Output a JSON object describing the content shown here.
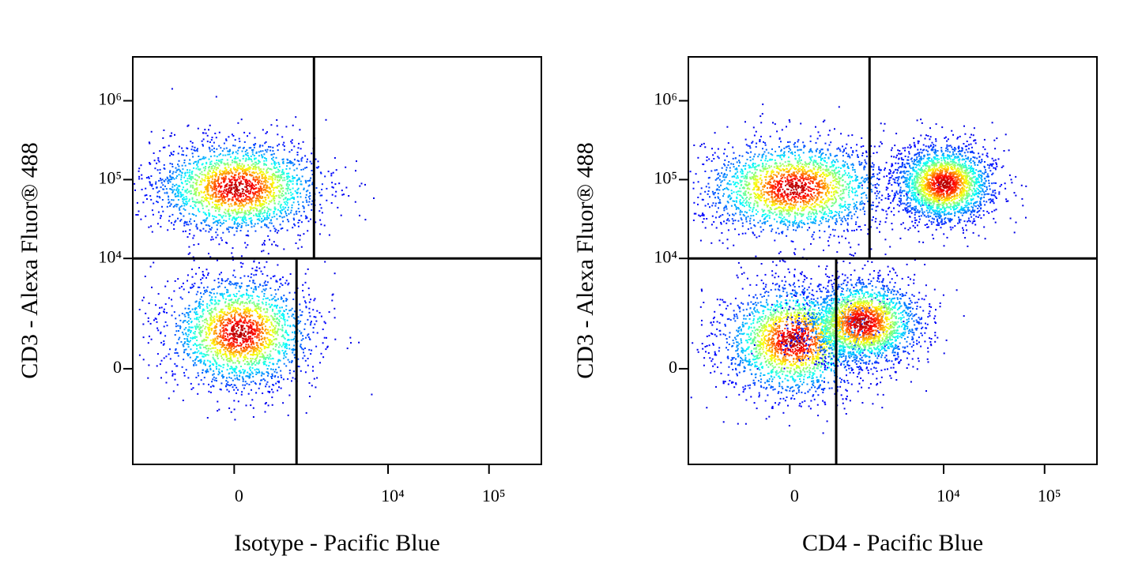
{
  "chart_data": [
    {
      "type": "density",
      "xlabel": "Isotype - Pacific Blue",
      "ylabel": "CD3 - Alexa Fluor® 488",
      "scale": "asinh",
      "x_linear_width": 600,
      "y_linear_width": 800,
      "xlim": [
        -3000,
        330000
      ],
      "ylim": [
        -6500,
        3600000
      ],
      "xticks": [
        0,
        {
          "value": 10000,
          "label": "10⁴"
        },
        {
          "value": 100000,
          "label": "10⁵"
        }
      ],
      "yticks": [
        0,
        {
          "value": 10000,
          "label": "10⁴"
        },
        {
          "value": 100000,
          "label": "10⁵"
        },
        {
          "value": 1000000,
          "label": "10⁶"
        }
      ],
      "gates": {
        "y": 10000,
        "x_upper": 1800,
        "x_lower": 1170
      },
      "clusters": [
        {
          "x": 40,
          "y": 80000,
          "spread": [
            0.42,
            0.3
          ]
        },
        {
          "x": 70,
          "y": 1040,
          "spread": [
            0.36,
            0.36
          ]
        }
      ]
    },
    {
      "type": "density",
      "xlabel": "CD4 - Pacific Blue",
      "ylabel": "CD3 - Alexa Fluor® 488",
      "scale": "asinh",
      "x_linear_width": 600,
      "y_linear_width": 800,
      "xlim": [
        -3000,
        330000
      ],
      "ylim": [
        -6500,
        3600000
      ],
      "xticks": [
        0,
        {
          "value": 10000,
          "label": "10⁴"
        },
        {
          "value": 100000,
          "label": "10⁵"
        }
      ],
      "yticks": [
        0,
        {
          "value": 10000,
          "label": "10⁴"
        },
        {
          "value": 100000,
          "label": "10⁵"
        },
        {
          "value": 1000000,
          "label": "10⁶"
        }
      ],
      "gates": {
        "y": 10000,
        "x_upper": 1800,
        "x_lower": 760
      },
      "clusters": [
        {
          "x": 50,
          "y": 80000,
          "spread": [
            0.45,
            0.3
          ]
        },
        {
          "x": 10000,
          "y": 90000,
          "spread": [
            0.25,
            0.25
          ]
        },
        {
          "x": 50,
          "y": 760,
          "spread": [
            0.36,
            0.36
          ]
        },
        {
          "x": 1480,
          "y": 1460,
          "spread": [
            0.3,
            0.28
          ]
        }
      ]
    }
  ]
}
